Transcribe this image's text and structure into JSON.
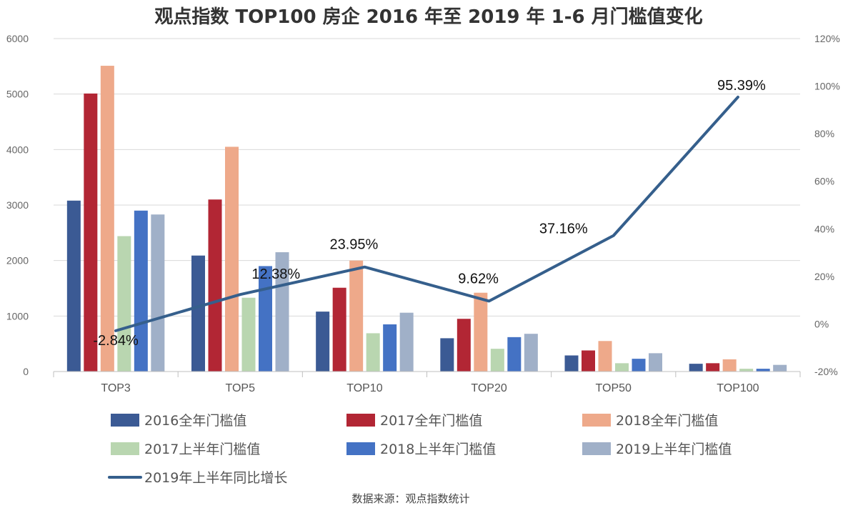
{
  "chart_data": {
    "type": "bar",
    "title": "观点指数 TOP100 房企 2016 年至 2019 年 1-6 月门槛值变化",
    "source": "数据来源：观点指数统计",
    "categories": [
      "TOP3",
      "TOP5",
      "TOP10",
      "TOP20",
      "TOP50",
      "TOP100"
    ],
    "y_left": {
      "ticks": [
        "0",
        "1000",
        "2000",
        "3000",
        "4000",
        "5000",
        "6000"
      ],
      "ylim": [
        0,
        6000
      ]
    },
    "y_right": {
      "ticks": [
        "-20%",
        "0%",
        "20%",
        "40%",
        "60%",
        "80%",
        "100%",
        "120%"
      ],
      "ylim": [
        -20,
        120
      ]
    },
    "grid": true,
    "legend_position": "bottom",
    "series": [
      {
        "name": "2016全年门槛值",
        "kind": "bar",
        "color": "#3b5a94",
        "values": [
          3080,
          2090,
          1080,
          600,
          290,
          140
        ]
      },
      {
        "name": "2017全年门槛值",
        "kind": "bar",
        "color": "#b22634",
        "values": [
          5010,
          3100,
          1510,
          950,
          380,
          150
        ]
      },
      {
        "name": "2018全年门槛值",
        "kind": "bar",
        "color": "#eea98a",
        "values": [
          5510,
          4050,
          2000,
          1420,
          550,
          220
        ]
      },
      {
        "name": "2017上半年门槛值",
        "kind": "bar",
        "color": "#b9d6b0",
        "values": [
          2440,
          1330,
          690,
          410,
          150,
          50
        ]
      },
      {
        "name": "2018上半年门槛值",
        "kind": "bar",
        "color": "#4472c4",
        "values": [
          2900,
          1900,
          850,
          620,
          230,
          50
        ]
      },
      {
        "name": "2019上半年门槛值",
        "kind": "bar",
        "color": "#a0b0c8",
        "values": [
          2830,
          2150,
          1060,
          680,
          330,
          120
        ]
      },
      {
        "name": "2019年上半年同比增长",
        "kind": "line",
        "axis": "right",
        "color": "#355f8c",
        "values": [
          -2.84,
          12.38,
          23.95,
          9.62,
          37.16,
          95.39
        ],
        "labels": [
          "-2.84%",
          "12.38%",
          "23.95%",
          "9.62%",
          "37.16%",
          "95.39%"
        ]
      }
    ]
  }
}
